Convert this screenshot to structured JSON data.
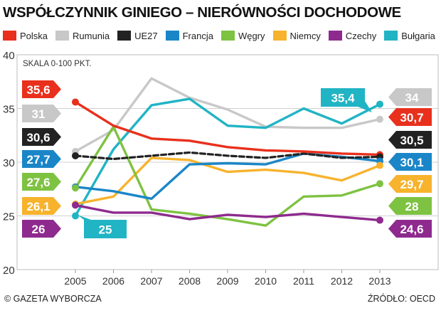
{
  "title": "WSPÓŁCZYNNIK GINIEGO – NIERÓWNOŚCI DOCHODOWE",
  "footer": {
    "left": "© GAZETA WYBORCZA",
    "right": "ŹRÓDŁO: OECD"
  },
  "chart_data": {
    "type": "line",
    "title": "WSPÓŁCZYNNIK GINIEGO – NIERÓWNOŚCI DOCHODOWE",
    "scale_note": "SKALA 0-100 PKT.",
    "x": [
      "2005",
      "2006",
      "2007",
      "2008",
      "2009",
      "2010",
      "2011",
      "2012",
      "2013"
    ],
    "ylim": [
      20,
      40
    ],
    "yticks": [
      "20",
      "25",
      "30",
      "35",
      "40"
    ],
    "grid": true,
    "legend_position": "top",
    "series": [
      {
        "name": "Polska",
        "color": "#e8301d",
        "values": [
          35.6,
          33.4,
          32.2,
          32.0,
          31.4,
          31.1,
          31.0,
          30.8,
          30.7
        ],
        "start_label": "35,6",
        "end_label": "30,7"
      },
      {
        "name": "Rumunia",
        "color": "#c8c8c8",
        "values": [
          31.0,
          33.0,
          37.8,
          36.0,
          34.9,
          33.3,
          33.2,
          33.2,
          34.0
        ],
        "start_label": "31",
        "end_label": "34"
      },
      {
        "name": "UE27",
        "color": "#222222",
        "dashed": true,
        "values": [
          30.6,
          30.3,
          30.6,
          30.9,
          30.6,
          30.4,
          30.8,
          30.4,
          30.5
        ],
        "start_label": "30,6",
        "end_label": "30,5"
      },
      {
        "name": "Francja",
        "color": "#1a86c8",
        "values": [
          27.7,
          27.3,
          26.6,
          29.8,
          29.9,
          29.8,
          30.8,
          30.5,
          30.1
        ],
        "start_label": "27,7",
        "end_label": "30,1"
      },
      {
        "name": "Węgry",
        "color": "#7ec242",
        "values": [
          27.6,
          33.3,
          25.6,
          25.2,
          24.7,
          24.1,
          26.8,
          26.9,
          28.0
        ],
        "start_label": "27,6",
        "end_label": "28"
      },
      {
        "name": "Niemcy",
        "color": "#f7b32d",
        "values": [
          26.1,
          26.8,
          30.4,
          30.2,
          29.1,
          29.3,
          29.0,
          28.3,
          29.7
        ],
        "start_label": "26,1",
        "end_label": "29,7"
      },
      {
        "name": "Czechy",
        "color": "#8e2a8e",
        "values": [
          26.0,
          25.3,
          25.3,
          24.7,
          25.1,
          24.9,
          25.2,
          24.9,
          24.6
        ],
        "start_label": "26",
        "end_label": "24,6"
      },
      {
        "name": "Bułgaria",
        "color": "#20b4c4",
        "values": [
          25.0,
          31.2,
          35.3,
          35.9,
          33.4,
          33.2,
          35.0,
          33.6,
          35.4
        ],
        "start_label": "25",
        "end_label": "35,4"
      }
    ]
  }
}
